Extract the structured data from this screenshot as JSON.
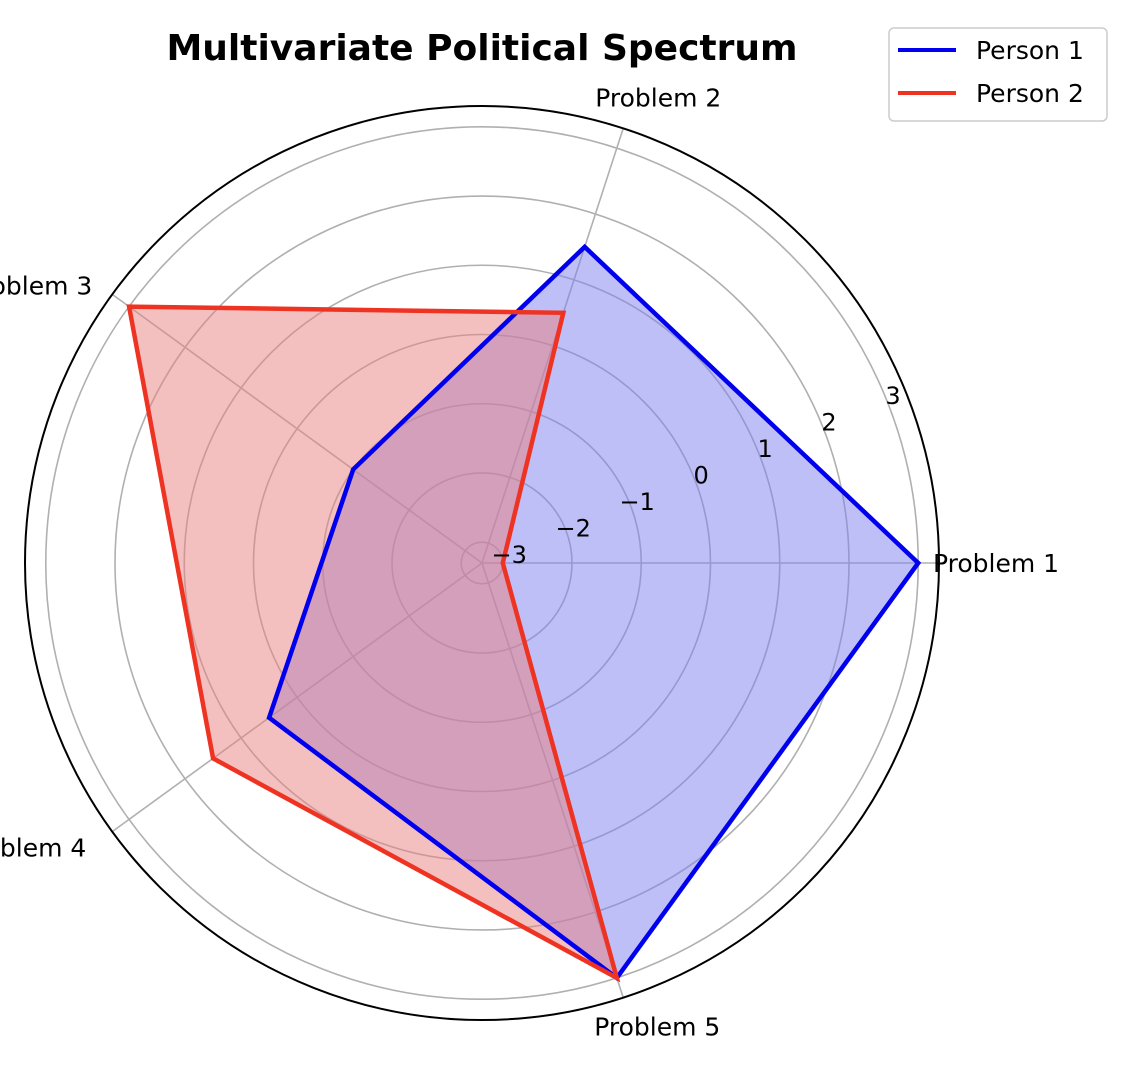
{
  "chart_data": {
    "type": "radar",
    "title": "Multivariate Political Spectrum",
    "categories": [
      "Problem 1",
      "Problem 2",
      "Problem 3",
      "Problem 4",
      "Problem 5"
    ],
    "radial_ticks": [
      -3,
      -2,
      -1,
      0,
      1,
      2,
      3
    ],
    "radial_tick_labels": [
      "−3",
      "−2",
      "−1",
      "0",
      "1",
      "2",
      "3"
    ],
    "rlim": [
      -3.3,
      3.3
    ],
    "grid": true,
    "legend_position": "top-right",
    "series": [
      {
        "name": "Person 1",
        "values": [
          3,
          1.5,
          -1,
          0.5,
          3
        ],
        "color": "#0000ee",
        "fill": "#8080f0"
      },
      {
        "name": "Person 2",
        "values": [
          -3,
          0.5,
          3,
          1.5,
          3
        ],
        "color": "#ee3322",
        "fill": "#e88080"
      }
    ]
  }
}
